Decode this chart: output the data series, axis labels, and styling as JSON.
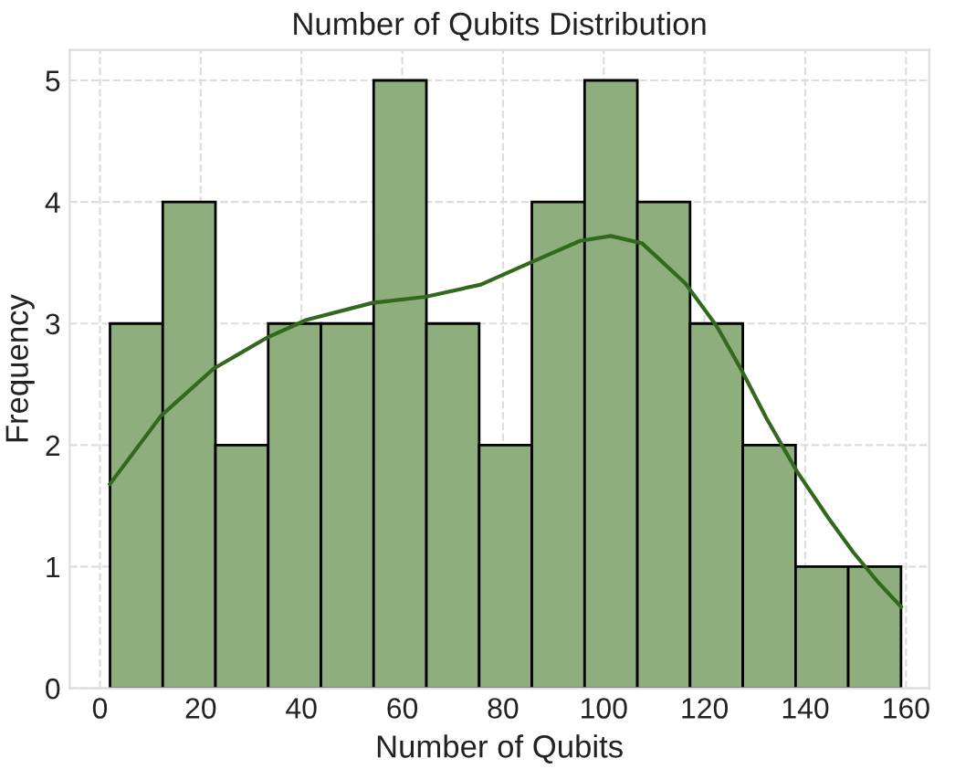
{
  "chart_data": {
    "type": "histogram",
    "title": "Number of Qubits Distribution",
    "xlabel": "Number of Qubits",
    "ylabel": "Frequency",
    "bins": [
      2,
      12.47,
      22.93,
      33.4,
      43.87,
      54.33,
      64.8,
      75.27,
      85.73,
      96.2,
      106.67,
      117.13,
      127.6,
      138.07,
      148.53,
      159
    ],
    "values": [
      3,
      4,
      2,
      3,
      3,
      5,
      3,
      2,
      4,
      5,
      4,
      3,
      2,
      1,
      1
    ],
    "color": "#8fae7e",
    "series": [
      {
        "type": "line",
        "color": "#33691e",
        "x": [
          2,
          12.1,
          22.6,
          33,
          41,
          54.1,
          64.6,
          75.6,
          85.4,
          95.3,
          101.4,
          107.6,
          116.2,
          122.4,
          127.3,
          132.3,
          138.4,
          144.6,
          149.5,
          154.5,
          159
        ],
        "values": [
          1.68,
          2.24,
          2.63,
          2.88,
          3.03,
          3.17,
          3.22,
          3.32,
          3.5,
          3.68,
          3.72,
          3.66,
          3.33,
          2.98,
          2.62,
          2.22,
          1.78,
          1.4,
          1.12,
          0.87,
          0.67
        ]
      }
    ],
    "xlim": [
      -6,
      164.6
    ],
    "ylim": [
      0,
      5.25
    ],
    "xticks": [
      0,
      20,
      40,
      60,
      80,
      100,
      120,
      140,
      160
    ],
    "yticks": [
      0,
      1,
      2,
      3,
      4,
      5
    ],
    "grid": true,
    "line_style": "solid"
  }
}
